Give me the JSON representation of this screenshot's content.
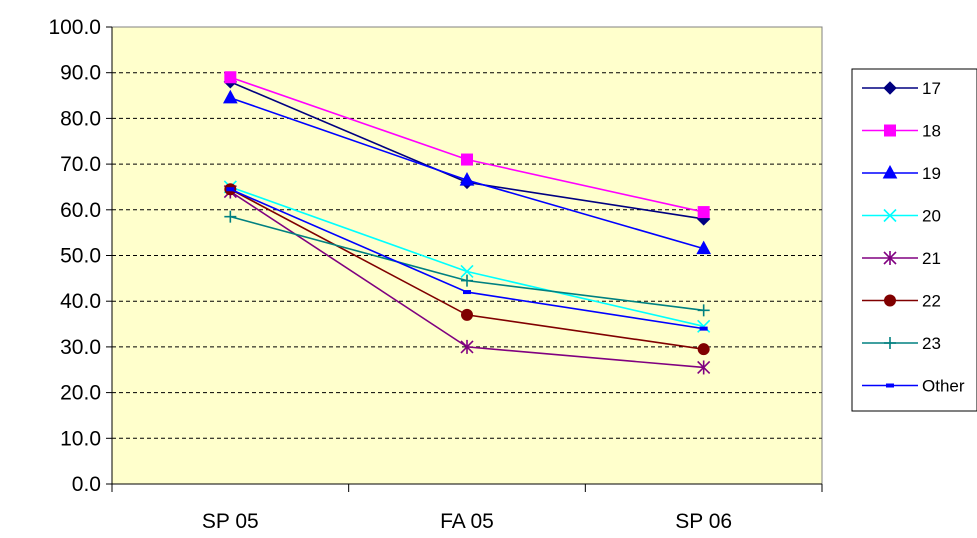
{
  "chart_data": {
    "type": "line",
    "categories": [
      "SP 05",
      "FA 05",
      "SP 06"
    ],
    "ylim": [
      0,
      100
    ],
    "ytick_step": 10,
    "ytick_labels": [
      "0.0",
      "10.0",
      "20.0",
      "30.0",
      "40.0",
      "50.0",
      "60.0",
      "70.0",
      "80.0",
      "90.0",
      "100.0"
    ],
    "grid": true,
    "legend_position": "right",
    "plot_background": "#FFFFCC",
    "series": [
      {
        "name": "17",
        "values": [
          88.0,
          66.0,
          58.0
        ],
        "color": "#000080",
        "marker": "diamond"
      },
      {
        "name": "18",
        "values": [
          89.0,
          71.0,
          59.5
        ],
        "color": "#FF00FF",
        "marker": "square"
      },
      {
        "name": "19",
        "values": [
          84.5,
          66.5,
          51.5
        ],
        "color": "#0000FF",
        "marker": "triangle"
      },
      {
        "name": "20",
        "values": [
          65.0,
          46.5,
          34.5
        ],
        "color": "#00FFFF",
        "marker": "x"
      },
      {
        "name": "21",
        "values": [
          64.0,
          30.0,
          25.5
        ],
        "color": "#800080",
        "marker": "asterisk"
      },
      {
        "name": "22",
        "values": [
          64.5,
          37.0,
          29.5
        ],
        "color": "#800000",
        "marker": "circle"
      },
      {
        "name": "23",
        "values": [
          58.5,
          44.5,
          38.0
        ],
        "color": "#008080",
        "marker": "plus"
      },
      {
        "name": "Other",
        "values": [
          64.5,
          42.0,
          34.0
        ],
        "color": "#0000FF",
        "marker": "dash"
      }
    ]
  }
}
